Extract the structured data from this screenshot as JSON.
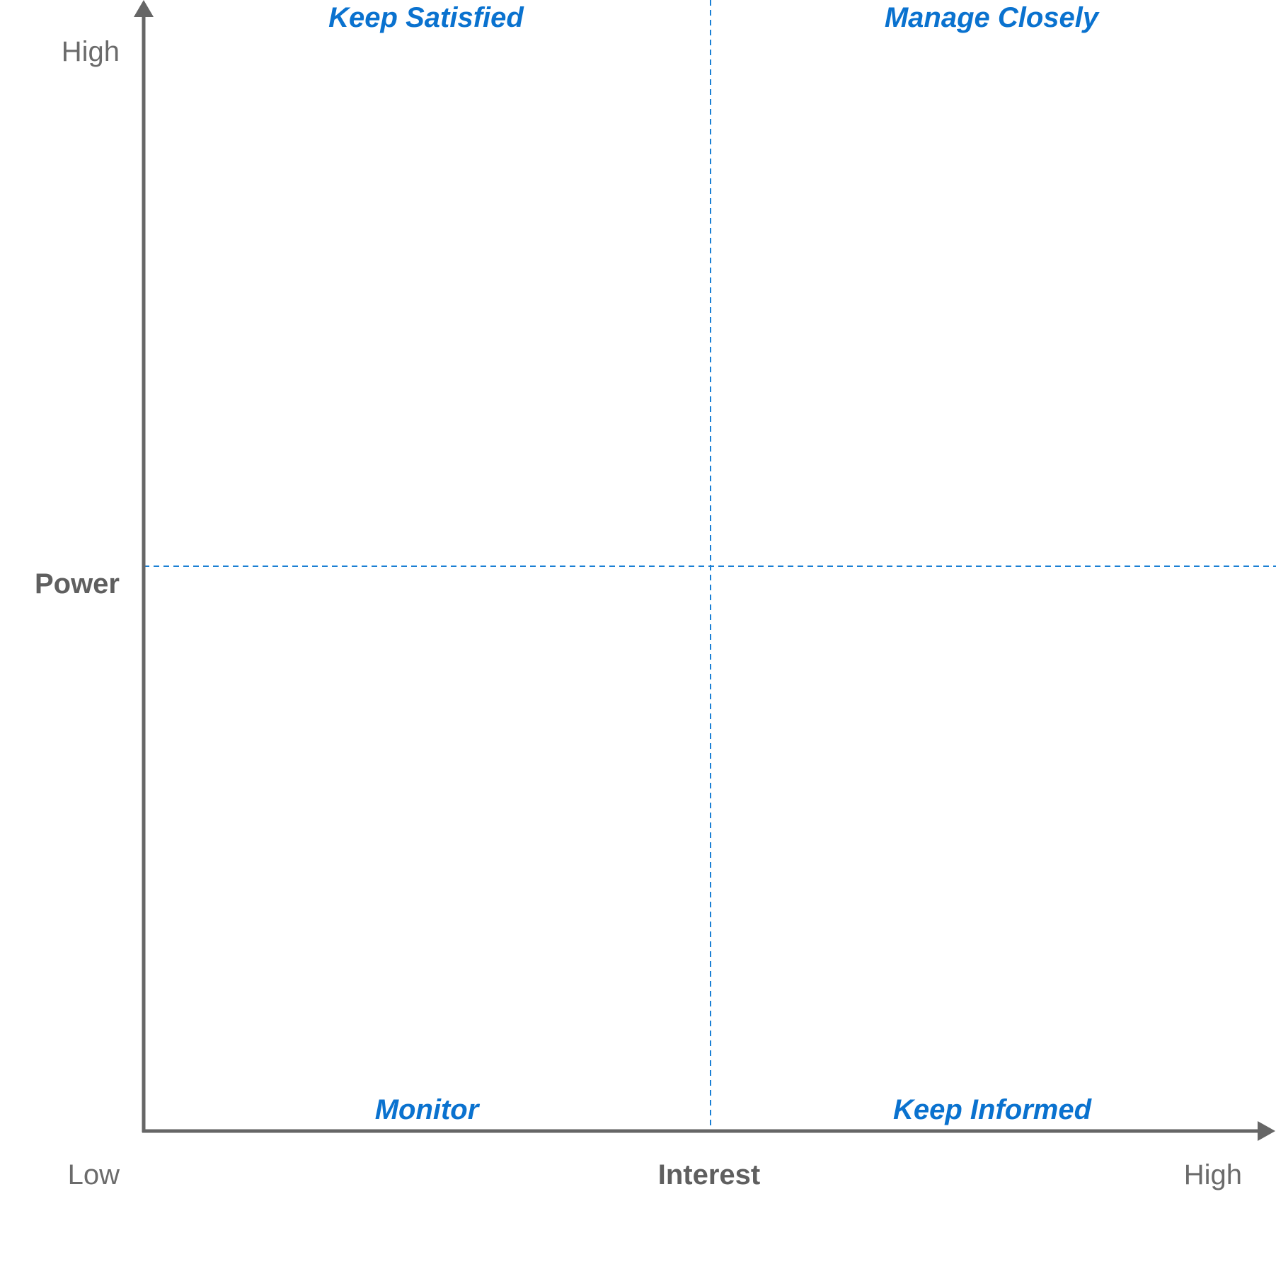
{
  "diagram": {
    "type": "quadrant-matrix",
    "y_axis": {
      "title": "Power",
      "high_label": "High"
    },
    "x_axis": {
      "title": "Interest",
      "low_label": "Low",
      "high_label": "High"
    },
    "quadrants": {
      "top_left": "Keep Satisfied",
      "top_right": "Manage Closely",
      "bottom_left": "Monitor",
      "bottom_right": "Keep Informed"
    },
    "colors": {
      "axis": "#666666",
      "divider": "#1a7fd4",
      "quadrant_label": "#0a72cf",
      "axis_text": "#6b6b6b"
    }
  }
}
